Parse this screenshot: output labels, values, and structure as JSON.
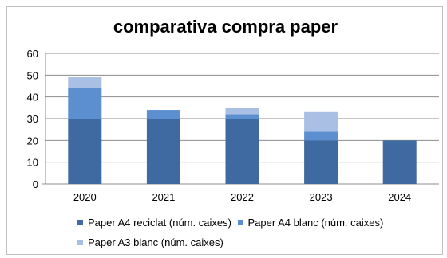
{
  "chart_data": {
    "type": "bar",
    "stacked": true,
    "title": "comparativa compra paper",
    "categories": [
      "2020",
      "2021",
      "2022",
      "2023",
      "2024"
    ],
    "series": [
      {
        "name": "Paper A4 reciclat (núm. caixes)",
        "color": "#3f6aa1",
        "values": [
          30,
          30,
          30,
          20,
          20
        ]
      },
      {
        "name": "Paper A4 blanc (núm. caixes)",
        "color": "#5b8fd0",
        "values": [
          14,
          4,
          2,
          4,
          0
        ]
      },
      {
        "name": "Paper A3 blanc (núm. caixes)",
        "color": "#a9bfe3",
        "values": [
          5,
          0,
          3,
          9,
          0
        ]
      }
    ],
    "yticks": [
      "0",
      "10",
      "20",
      "30",
      "40",
      "50",
      "60"
    ],
    "ylim": [
      0,
      60
    ],
    "grid": true,
    "legend_position": "bottom"
  }
}
